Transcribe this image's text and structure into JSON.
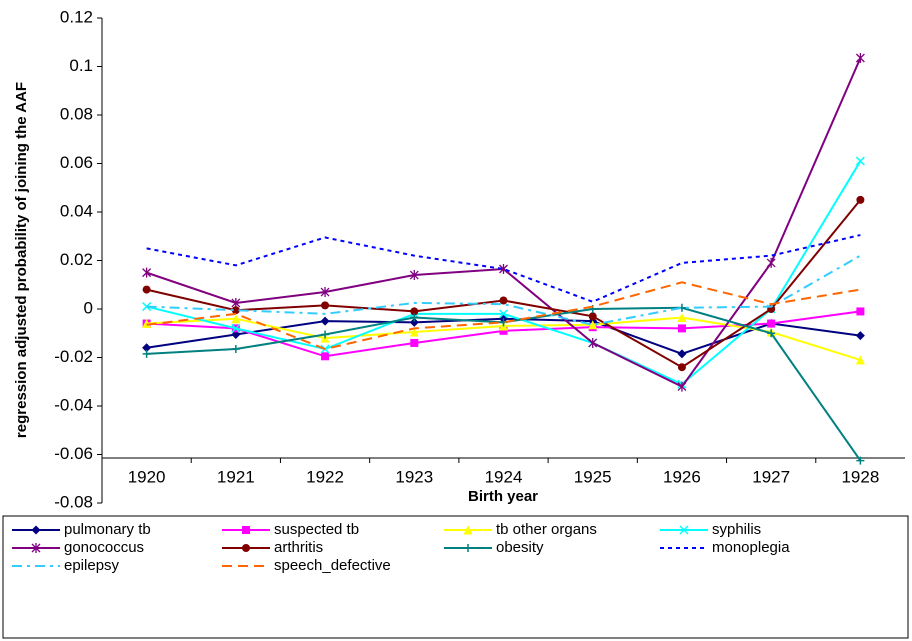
{
  "chart_data": {
    "type": "line",
    "y_label": "regression adjusted probability of joining the AAF",
    "x_label": "Birth year",
    "categories": [
      "1920",
      "1921",
      "1922",
      "1923",
      "1924",
      "1925",
      "1926",
      "1927",
      "1928"
    ],
    "ylim": [
      -0.08,
      0.12
    ],
    "yticks": [
      -0.08,
      -0.06,
      -0.04,
      -0.02,
      0,
      0.02,
      0.04,
      0.06,
      0.08,
      0.1,
      0.12
    ],
    "series": [
      {
        "name": "pulmonary tb",
        "color": "#000080",
        "marker": "diamond",
        "dash": "solid",
        "values": [
          -0.016,
          -0.0105,
          -0.005,
          -0.0055,
          -0.004,
          -0.005,
          -0.0185,
          -0.006,
          -0.011
        ]
      },
      {
        "name": "suspected tb",
        "color": "#ff00ff",
        "marker": "square",
        "dash": "solid",
        "values": [
          -0.006,
          -0.008,
          -0.0195,
          -0.014,
          -0.009,
          -0.0075,
          -0.008,
          -0.006,
          -0.001
        ]
      },
      {
        "name": "tb other organs",
        "color": "#ffff00",
        "marker": "triangle",
        "dash": "solid",
        "values": [
          -0.006,
          -0.004,
          -0.012,
          -0.0095,
          -0.007,
          -0.0065,
          -0.0035,
          -0.0095,
          -0.021
        ]
      },
      {
        "name": "syphilis",
        "color": "#00ffff",
        "marker": "x",
        "dash": "solid",
        "values": [
          0.001,
          -0.008,
          -0.0165,
          -0.002,
          -0.002,
          -0.014,
          -0.031,
          0,
          0.061
        ]
      },
      {
        "name": "gonococcus",
        "color": "#800080",
        "marker": "star",
        "dash": "solid",
        "values": [
          0.015,
          0.0025,
          0.007,
          0.014,
          0.0165,
          -0.014,
          -0.032,
          0.019,
          0.1035
        ]
      },
      {
        "name": "arthritis",
        "color": "#800000",
        "marker": "circle",
        "dash": "solid",
        "values": [
          0.008,
          -0.0005,
          0.0015,
          -0.001,
          0.0035,
          -0.003,
          -0.024,
          0,
          0.045
        ]
      },
      {
        "name": "obesity",
        "color": "#008080",
        "marker": "plus",
        "dash": "solid",
        "values": [
          -0.0185,
          -0.0165,
          -0.0105,
          -0.0035,
          -0.0055,
          0,
          0.0005,
          -0.01,
          -0.0625
        ]
      },
      {
        "name": "monoplegia",
        "color": "#0000ff",
        "marker": "none",
        "dash": "dot",
        "values": [
          0.025,
          0.018,
          0.0295,
          0.022,
          0.0165,
          0.003,
          0.019,
          0.022,
          0.0305
        ]
      },
      {
        "name": "epilepsy",
        "color": "#33ccff",
        "marker": "none",
        "dash": "dashdot",
        "values": [
          0.001,
          -0.0005,
          -0.002,
          0.0025,
          0.002,
          -0.0065,
          0.0005,
          0.001,
          0.022
        ]
      },
      {
        "name": "speech_defective",
        "color": "#ff6600",
        "marker": "none",
        "dash": "dash",
        "values": [
          -0.0065,
          -0.002,
          -0.0165,
          -0.008,
          -0.0055,
          0.001,
          0.011,
          0.002,
          0.008
        ]
      }
    ]
  }
}
